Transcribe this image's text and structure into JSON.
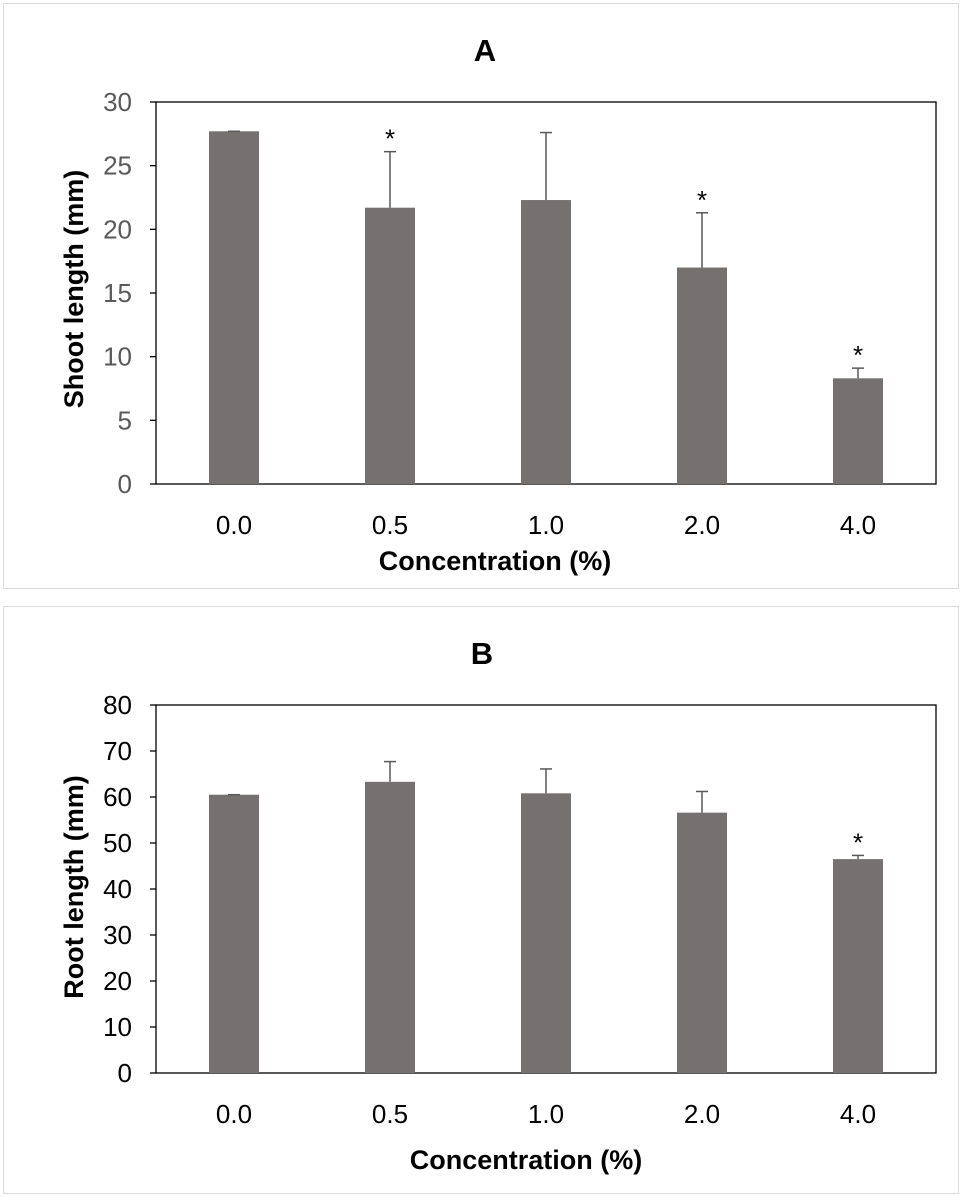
{
  "chart_data": [
    {
      "type": "bar",
      "title": "A",
      "xlabel": "Concentration (%)",
      "ylabel": "Shoot length (mm)",
      "categories": [
        "0.0",
        "0.5",
        "1.0",
        "2.0",
        "4.0"
      ],
      "values": [
        27.7,
        21.7,
        22.3,
        17.0,
        8.3
      ],
      "error_upper": [
        0.0,
        4.4,
        5.3,
        4.3,
        0.8
      ],
      "significance": [
        "",
        "*",
        "",
        "*",
        "*"
      ],
      "ylim": [
        0,
        30
      ],
      "yticks": [
        "0",
        "5",
        "10",
        "15",
        "20",
        "25",
        "30"
      ],
      "ytick_color": "#595959",
      "grid": false,
      "bar_color": "#767171"
    },
    {
      "type": "bar",
      "title": "B",
      "xlabel": "Concentration (%)",
      "ylabel": "Root length (mm)",
      "categories": [
        "0.0",
        "0.5",
        "1.0",
        "2.0",
        "4.0"
      ],
      "values": [
        60.5,
        63.3,
        60.8,
        56.6,
        46.5
      ],
      "error_upper": [
        0.0,
        4.4,
        5.3,
        4.6,
        0.8
      ],
      "significance": [
        "",
        "",
        "",
        "",
        "*"
      ],
      "ylim": [
        0,
        80
      ],
      "yticks": [
        "0",
        "10",
        "20",
        "30",
        "40",
        "50",
        "60",
        "70",
        "80"
      ],
      "ytick_color": "#000000",
      "grid": false,
      "bar_color": "#767171"
    }
  ]
}
